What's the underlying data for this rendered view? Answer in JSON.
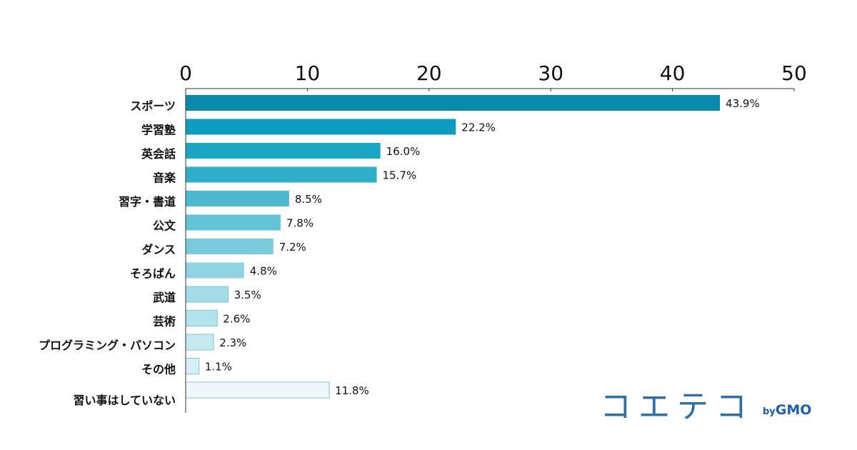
{
  "chart_data": {
    "type": "bar",
    "orientation": "horizontal",
    "title": "",
    "xlabel": "",
    "ylabel": "",
    "xlim": [
      0,
      50
    ],
    "x_ticks": [
      0,
      10,
      20,
      30,
      40,
      50
    ],
    "x_axis_position": "top",
    "grid": false,
    "value_suffix": "%",
    "categories": [
      "スポーツ",
      "学習塾",
      "英会話",
      "音楽",
      "習字・書道",
      "公文",
      "ダンス",
      "そろばん",
      "武道",
      "芸術",
      "プログラミング・パソコン",
      "その他",
      "習い事はしていない"
    ],
    "values": [
      43.9,
      22.2,
      16.0,
      15.7,
      8.5,
      7.8,
      7.2,
      4.8,
      3.5,
      2.6,
      2.3,
      1.1,
      11.8
    ],
    "value_labels": [
      "43.9%",
      "22.2%",
      "16.0%",
      "15.7%",
      "8.5%",
      "7.8%",
      "7.2%",
      "4.8%",
      "3.5%",
      "2.6%",
      "2.3%",
      "1.1%",
      "11.8%"
    ],
    "bar_colors": [
      "#0a8aa8",
      "#0f9bbd",
      "#1aa5c3",
      "#2eaec8",
      "#4cb9d0",
      "#63c2d6",
      "#79cbdc",
      "#8fd3e1",
      "#a3dbe7",
      "#b3e2ec",
      "#c3e8f0",
      "#d6eff4",
      "#eef7fa"
    ]
  },
  "brand": {
    "name": "コエテコ",
    "by": "by",
    "company": "GMO"
  }
}
